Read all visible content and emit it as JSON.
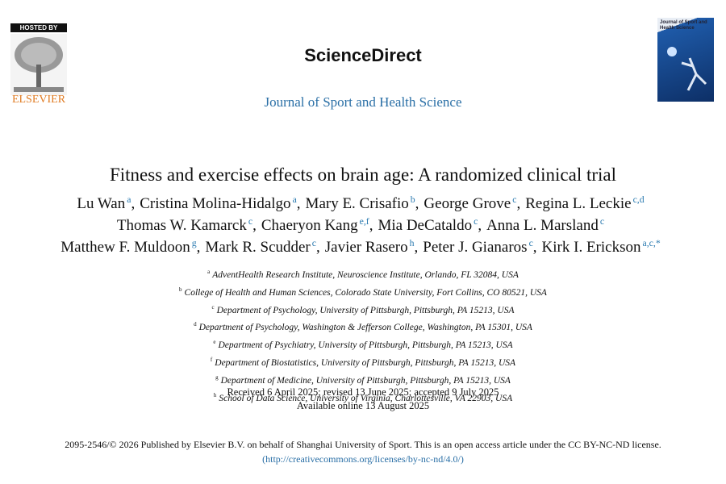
{
  "header": {
    "hosted_by": "HOSTED BY",
    "publisher": "ELSEVIER",
    "platform": "ScienceDirect",
    "journal": "Journal of Sport and Health Science",
    "cover_title": "Journal of Sport and Health Science"
  },
  "article": {
    "title": "Fitness and exercise effects on brain age: A randomized clinical trial",
    "author_lines": [
      [
        {
          "name": "Lu Wan",
          "sup": "a"
        },
        {
          "name": "Cristina Molina-Hidalgo",
          "sup": "a"
        },
        {
          "name": "Mary E. Crisafio",
          "sup": "b"
        },
        {
          "name": "George Grove",
          "sup": "c"
        },
        {
          "name": "Regina L. Leckie",
          "sup": "c,d"
        }
      ],
      [
        {
          "name": "Thomas W. Kamarck",
          "sup": "c"
        },
        {
          "name": "Chaeryon Kang",
          "sup": "e,f"
        },
        {
          "name": "Mia DeCataldo",
          "sup": "c"
        },
        {
          "name": "Anna L. Marsland",
          "sup": "c"
        }
      ],
      [
        {
          "name": "Matthew F. Muldoon",
          "sup": "g"
        },
        {
          "name": "Mark R. Scudder",
          "sup": "c"
        },
        {
          "name": "Javier Rasero",
          "sup": "h"
        },
        {
          "name": "Peter J. Gianaros",
          "sup": "c"
        },
        {
          "name": "Kirk I. Erickson",
          "sup": "a,c,*"
        }
      ]
    ],
    "affiliations": [
      {
        "key": "a",
        "text": "AdventHealth Research Institute, Neuroscience Institute, Orlando, FL 32084, USA"
      },
      {
        "key": "b",
        "text": "College of Health and Human Sciences, Colorado State University, Fort Collins, CO 80521, USA"
      },
      {
        "key": "c",
        "text": "Department of Psychology, University of Pittsburgh, Pittsburgh, PA 15213, USA"
      },
      {
        "key": "d",
        "text": "Department of Psychology, Washington & Jefferson College, Washington, PA 15301, USA"
      },
      {
        "key": "e",
        "text": "Department of Psychiatry, University of Pittsburgh, Pittsburgh, PA 15213, USA"
      },
      {
        "key": "f",
        "text": "Department of Biostatistics, University of Pittsburgh, Pittsburgh, PA 15213, USA"
      },
      {
        "key": "g",
        "text": "Department of Medicine, University of Pittsburgh, Pittsburgh, PA 15213, USA"
      },
      {
        "key": "h",
        "text": "School of Data Science, University of Virginia, Charlottesville, VA 22903, USA"
      }
    ],
    "dates": [
      "Received 6 April 2025; revised 13 June 2025; accepted 9 July 2025",
      "Available online 13 August 2025"
    ],
    "license": "2095-2546/© 2026 Published by Elsevier B.V. on behalf of Shanghai University of Sport. This is an open access article under the CC BY-NC-ND license.",
    "license_link": "(http://creativecommons.org/licenses/by-nc-nd/4.0/)"
  }
}
